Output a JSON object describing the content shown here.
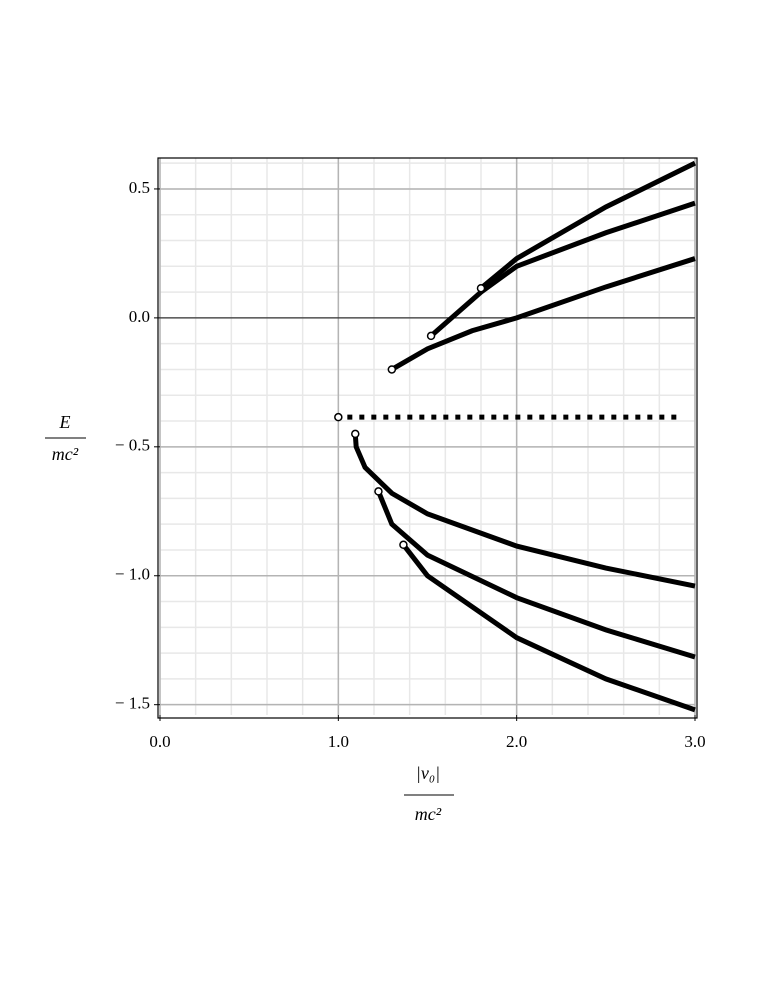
{
  "chart_data": {
    "type": "line",
    "y_label": {
      "numerator": "E",
      "denominator": "mc²"
    },
    "x_label": {
      "numerator": "|v₀|",
      "denominator": "mc²"
    },
    "xlim": [
      0,
      3.0
    ],
    "ylim": [
      -1.54,
      0.62
    ],
    "xticks": [
      {
        "value": 0,
        "label": "0.0"
      },
      {
        "value": 1,
        "label": "1.0"
      },
      {
        "value": 2,
        "label": "2.0"
      },
      {
        "value": 3,
        "label": "3.0"
      }
    ],
    "yticks": [
      {
        "value": 0.5,
        "label": "0.5"
      },
      {
        "value": 0,
        "label": "0.0"
      },
      {
        "value": -0.5,
        "label": "− 0.5"
      },
      {
        "value": -1,
        "label": "− 1.0"
      },
      {
        "value": -1.5,
        "label": "− 1.5"
      }
    ],
    "grid": true,
    "minor_grid": {
      "x": 0.2,
      "y": 0.1
    },
    "zero_line": true,
    "series": [
      {
        "color": "#000000",
        "style": "solid",
        "marker_start": true,
        "x": [
          1.3,
          1.5,
          1.75,
          2,
          2.5,
          3
        ],
        "values": [
          -0.2,
          -0.12,
          -0.05,
          0.0,
          0.12,
          0.23
        ]
      },
      {
        "color": "#000000",
        "style": "solid",
        "marker_start": true,
        "x": [
          1.52,
          1.8,
          2,
          2.5,
          3
        ],
        "values": [
          -0.07,
          0.1,
          0.2,
          0.33,
          0.445
        ]
      },
      {
        "color": "#000000",
        "style": "solid",
        "marker_start": true,
        "x": [
          1.8,
          2,
          2.5,
          3
        ],
        "values": [
          0.115,
          0.23,
          0.43,
          0.6
        ]
      },
      {
        "color": "#000000",
        "style": "dotted",
        "marker_start": true,
        "x": [
          1.0,
          2.92
        ],
        "values": [
          -0.385,
          -0.385
        ]
      },
      {
        "color": "#000000",
        "style": "solid",
        "marker_start": true,
        "x": [
          1.095,
          1.1,
          1.15,
          1.3,
          1.5,
          2,
          2.5,
          3
        ],
        "values": [
          -0.45,
          -0.5,
          -0.58,
          -0.68,
          -0.76,
          -0.885,
          -0.97,
          -1.04
        ]
      },
      {
        "color": "#000000",
        "style": "solid",
        "marker_start": true,
        "x": [
          1.225,
          1.3,
          1.5,
          2,
          2.5,
          3
        ],
        "values": [
          -0.673,
          -0.8,
          -0.92,
          -1.085,
          -1.21,
          -1.315
        ]
      },
      {
        "color": "#000000",
        "style": "solid",
        "marker_start": true,
        "x": [
          1.365,
          1.5,
          2,
          2.5,
          3
        ],
        "values": [
          -0.88,
          -1.0,
          -1.24,
          -1.4,
          -1.52
        ]
      }
    ]
  }
}
